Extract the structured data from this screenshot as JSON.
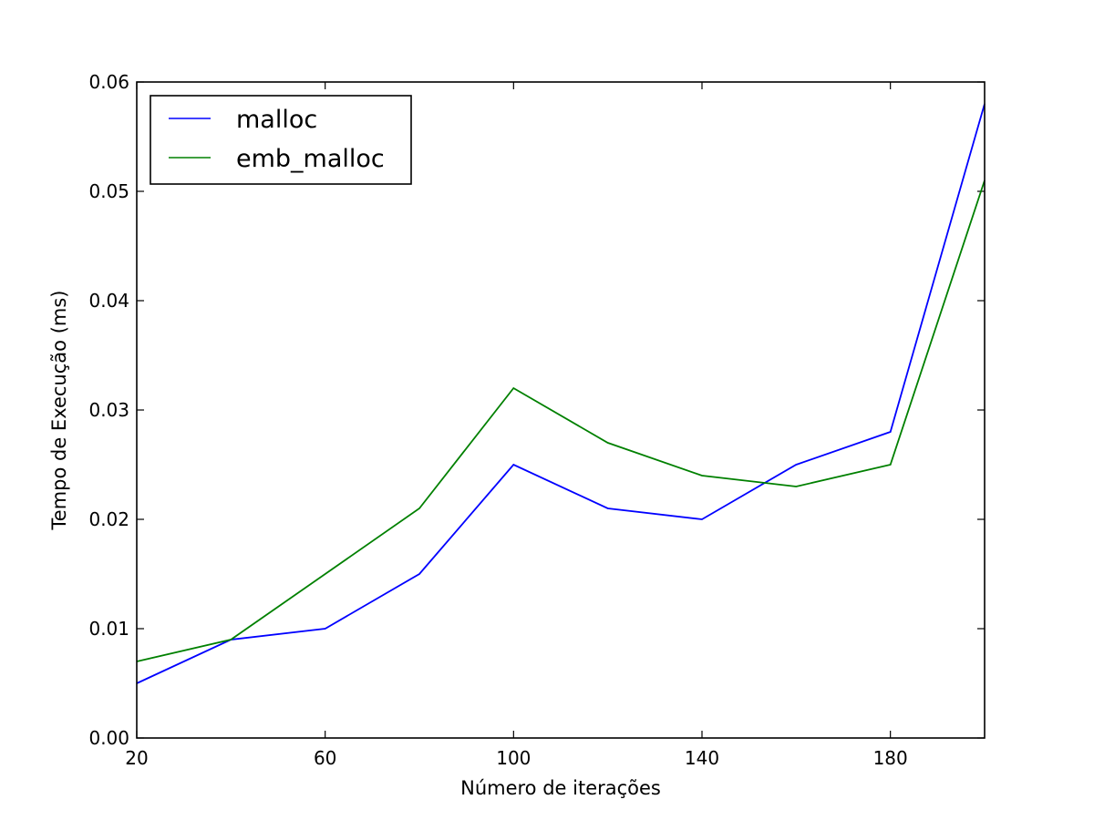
{
  "chart_data": {
    "type": "line",
    "title": "",
    "xlabel": "Número de iterações",
    "ylabel": "Tempo de Execução (ms)",
    "xlim": [
      20,
      200
    ],
    "ylim": [
      0.0,
      0.06
    ],
    "x_ticks": [
      20,
      60,
      100,
      140,
      180
    ],
    "x_tick_labels": [
      "20",
      "60",
      "100",
      "140",
      "180"
    ],
    "y_ticks": [
      0.0,
      0.01,
      0.02,
      0.03,
      0.04,
      0.05,
      0.06
    ],
    "y_tick_labels": [
      "0.00",
      "0.01",
      "0.02",
      "0.03",
      "0.04",
      "0.05",
      "0.06"
    ],
    "grid": false,
    "legend_position": "top-left",
    "x": [
      20,
      40,
      60,
      80,
      100,
      120,
      140,
      160,
      180,
      200
    ],
    "series": [
      {
        "name": "malloc",
        "color": "#0000ff",
        "values": [
          0.005,
          0.009,
          0.01,
          0.015,
          0.025,
          0.021,
          0.02,
          0.025,
          0.028,
          0.058
        ]
      },
      {
        "name": "emb_malloc",
        "color": "#008000",
        "values": [
          0.007,
          0.009,
          0.015,
          0.021,
          0.032,
          0.027,
          0.024,
          0.023,
          0.025,
          0.051
        ]
      }
    ]
  }
}
